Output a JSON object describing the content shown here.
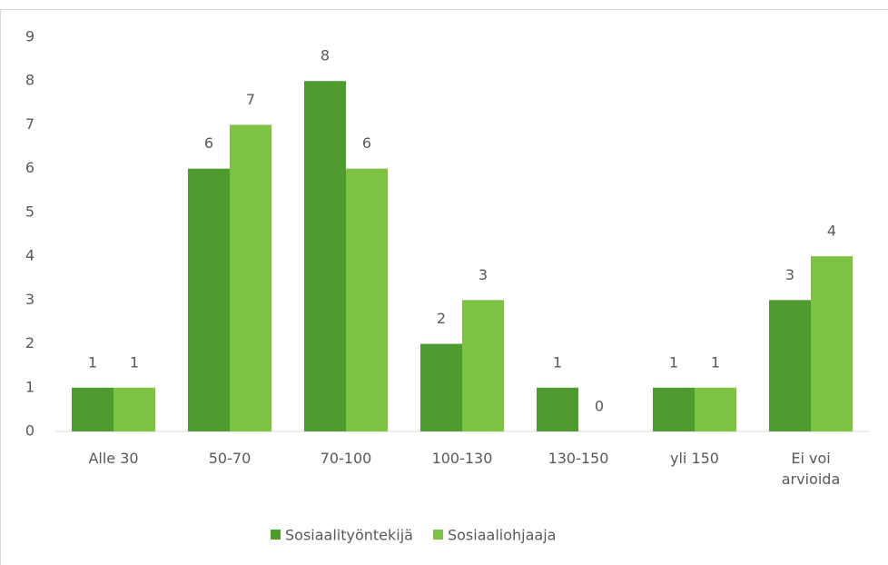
{
  "chart_data": {
    "type": "bar",
    "categories": [
      "Alle 30",
      "50-70",
      "70-100",
      "100-130",
      "130-150",
      "yli 150",
      "Ei voi arvioida"
    ],
    "series": [
      {
        "name": "Sosiaalityöntekijä",
        "color": "#4f9b2f",
        "values": [
          1,
          6,
          8,
          2,
          1,
          1,
          3
        ]
      },
      {
        "name": "Sosiaaliohjaaja",
        "color": "#7dc242",
        "values": [
          1,
          7,
          6,
          3,
          0,
          1,
          4
        ]
      }
    ],
    "ylim": [
      0,
      9
    ],
    "yticks": [
      0,
      1,
      2,
      3,
      4,
      5,
      6,
      7,
      8,
      9
    ],
    "grid": false,
    "legend": "bottom"
  }
}
